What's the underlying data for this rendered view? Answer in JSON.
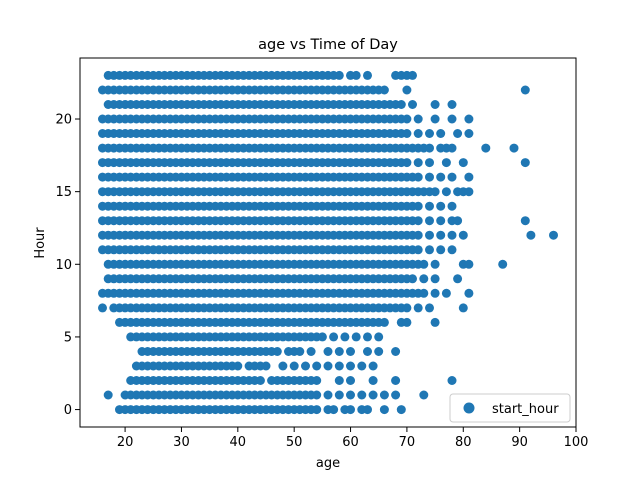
{
  "chart_data": {
    "type": "scatter",
    "title": "age vs Time of Day",
    "xlabel": "age",
    "ylabel": "Hour",
    "xlim": [
      12,
      100
    ],
    "ylim": [
      -1.2,
      24.2
    ],
    "xticks": [
      20,
      30,
      40,
      50,
      60,
      70,
      80,
      90,
      100
    ],
    "yticks": [
      0,
      5,
      10,
      15,
      20
    ],
    "grid": false,
    "legend_position": "lower right",
    "marker_color": "#1f77b4",
    "series": [
      {
        "name": "start_hour",
        "rows": [
          {
            "hour": 0,
            "x_min": 19,
            "x_max": 54,
            "extra": [
              56,
              57,
              59,
              60,
              62,
              63,
              66,
              69
            ]
          },
          {
            "hour": 1,
            "x_min": 20,
            "x_max": 54,
            "extra": [
              17,
              56,
              58,
              60,
              62,
              64,
              66,
              68,
              73
            ]
          },
          {
            "hour": 2,
            "x_min": 21,
            "x_max": 44,
            "extra": [
              46,
              47,
              48,
              49,
              50,
              51,
              52,
              53,
              54,
              58,
              60,
              64,
              68,
              78
            ]
          },
          {
            "hour": 3,
            "x_min": 22,
            "x_max": 40,
            "extra": [
              42,
              43,
              44,
              45,
              48,
              50,
              52,
              54,
              56,
              58,
              60,
              62,
              64
            ]
          },
          {
            "hour": 4,
            "x_min": 23,
            "x_max": 47,
            "extra": [
              49,
              50,
              51,
              53,
              56,
              58,
              60,
              63,
              65,
              68
            ]
          },
          {
            "hour": 5,
            "x_min": 21,
            "x_max": 55,
            "extra": [
              57,
              59,
              61,
              63,
              65
            ]
          },
          {
            "hour": 6,
            "x_min": 19,
            "x_max": 66,
            "extra": [
              69,
              70,
              75
            ]
          },
          {
            "hour": 7,
            "x_min": 18,
            "x_max": 70,
            "extra": [
              16,
              72,
              74,
              80
            ]
          },
          {
            "hour": 8,
            "x_min": 16,
            "x_max": 72,
            "extra": [
              73,
              75,
              77,
              81
            ]
          },
          {
            "hour": 9,
            "x_min": 17,
            "x_max": 71,
            "extra": [
              73,
              75,
              79
            ]
          },
          {
            "hour": 10,
            "x_min": 17,
            "x_max": 72,
            "extra": [
              73,
              75,
              80,
              81,
              87
            ]
          },
          {
            "hour": 11,
            "x_min": 16,
            "x_max": 72,
            "extra": [
              74,
              76,
              78
            ]
          },
          {
            "hour": 12,
            "x_min": 16,
            "x_max": 72,
            "extra": [
              74,
              76,
              78,
              80,
              92,
              96
            ]
          },
          {
            "hour": 13,
            "x_min": 16,
            "x_max": 70,
            "extra": [
              71,
              72,
              74,
              76,
              78,
              79,
              91
            ]
          },
          {
            "hour": 14,
            "x_min": 16,
            "x_max": 72,
            "extra": [
              74,
              76,
              78
            ]
          },
          {
            "hour": 15,
            "x_min": 16,
            "x_max": 74,
            "extra": [
              75,
              77,
              79,
              80,
              81
            ]
          },
          {
            "hour": 16,
            "x_min": 16,
            "x_max": 72,
            "extra": [
              74,
              76,
              78,
              81
            ]
          },
          {
            "hour": 17,
            "x_min": 16,
            "x_max": 70,
            "extra": [
              72,
              74,
              77,
              80,
              91
            ]
          },
          {
            "hour": 18,
            "x_min": 16,
            "x_max": 73,
            "extra": [
              74,
              76,
              77,
              78,
              84,
              89
            ]
          },
          {
            "hour": 19,
            "x_min": 16,
            "x_max": 70,
            "extra": [
              72,
              74,
              76,
              79,
              81
            ]
          },
          {
            "hour": 20,
            "x_min": 16,
            "x_max": 70,
            "extra": [
              72,
              75,
              78,
              81
            ]
          },
          {
            "hour": 21,
            "x_min": 17,
            "x_max": 66,
            "extra": [
              67,
              68,
              69,
              71,
              75,
              78
            ]
          },
          {
            "hour": 22,
            "x_min": 16,
            "x_max": 66,
            "extra": [
              70,
              91
            ]
          },
          {
            "hour": 23,
            "x_min": 17,
            "x_max": 58,
            "extra": [
              60,
              61,
              63,
              68,
              69,
              70,
              71
            ]
          }
        ]
      }
    ]
  }
}
